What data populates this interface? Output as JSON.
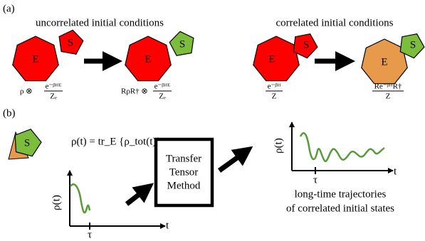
{
  "panel_a": {
    "label": "(a)",
    "uncorrelated": {
      "title": "uncorrelated initial conditions",
      "before": {
        "env": "E",
        "sys": "S",
        "prefix": "ρ ⊗",
        "numerator": "e⁻ᵝᴴᴱ",
        "denominator": "Zₑ"
      },
      "after": {
        "env": "E",
        "sys": "S",
        "prefix": "RρR† ⊗",
        "numerator": "e⁻ᵝᴴᴱ",
        "denominator": "Zₑ"
      }
    },
    "correlated": {
      "title": "correlated initial conditions",
      "before": {
        "env": "E",
        "sys": "S",
        "numerator": "e⁻ᵝᴴ",
        "denominator": "Z"
      },
      "after": {
        "env": "E",
        "sys": "S",
        "numerator": "Re⁻ᵝᴴR†",
        "denominator": "Z"
      }
    }
  },
  "panel_b": {
    "label": "(b)",
    "sys": "S",
    "equation": "ρ(t) = tr_E {ρ_tot(t)}",
    "short_plot": {
      "y_label": "ρ(t)",
      "tick": "τ",
      "x_label": "t"
    },
    "box": [
      "Transfer",
      "Tensor",
      "Method"
    ],
    "long_plot": {
      "y_label": "ρ(t)",
      "tick": "τ",
      "x_label": "t"
    },
    "caption": [
      "long-time trajectories",
      "of correlated initial states"
    ]
  }
}
